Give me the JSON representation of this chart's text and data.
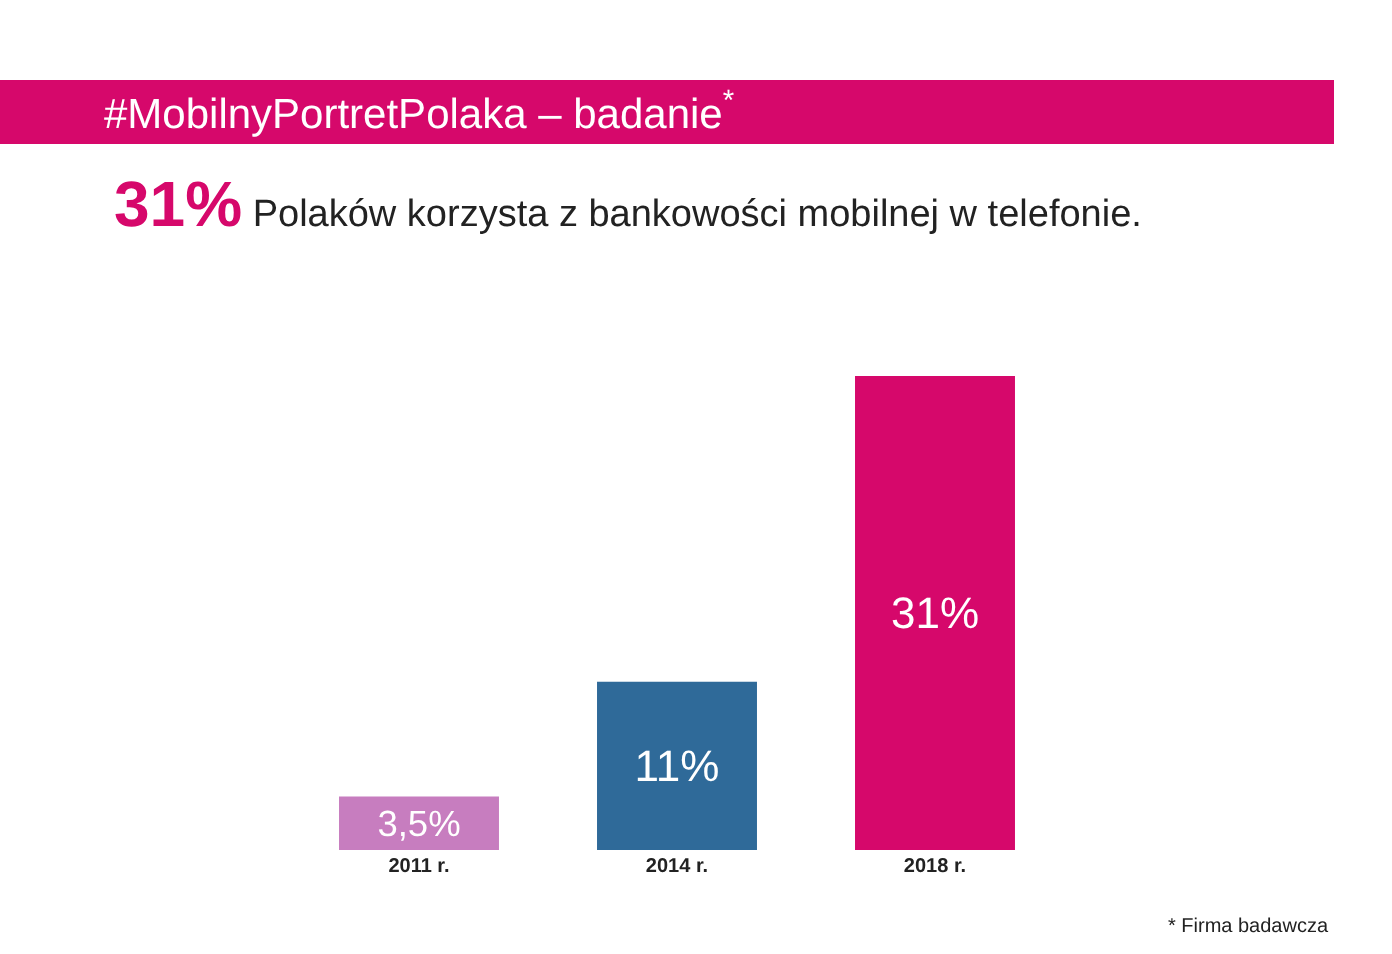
{
  "chart_data": {
    "type": "bar",
    "title": "#MobilnyPortretPolaka – badanie$^{*}$",
    "subtitle": "31% Polaków korzysta z bankowości mobilnej w telefonie.",
    "categories": [
      "2011 r.",
      "2014 r.",
      "2018 r."
    ],
    "values": [
      3.5,
      11,
      31
    ],
    "colors": [
      "#c77dbf",
      "#2f6a99",
      "#d6086b"
    ],
    "value_labels": [
      "3,5%",
      "11%",
      "31%"
    ],
    "annotations": [
      "* Firma badawcza"
    ]
  }
}
